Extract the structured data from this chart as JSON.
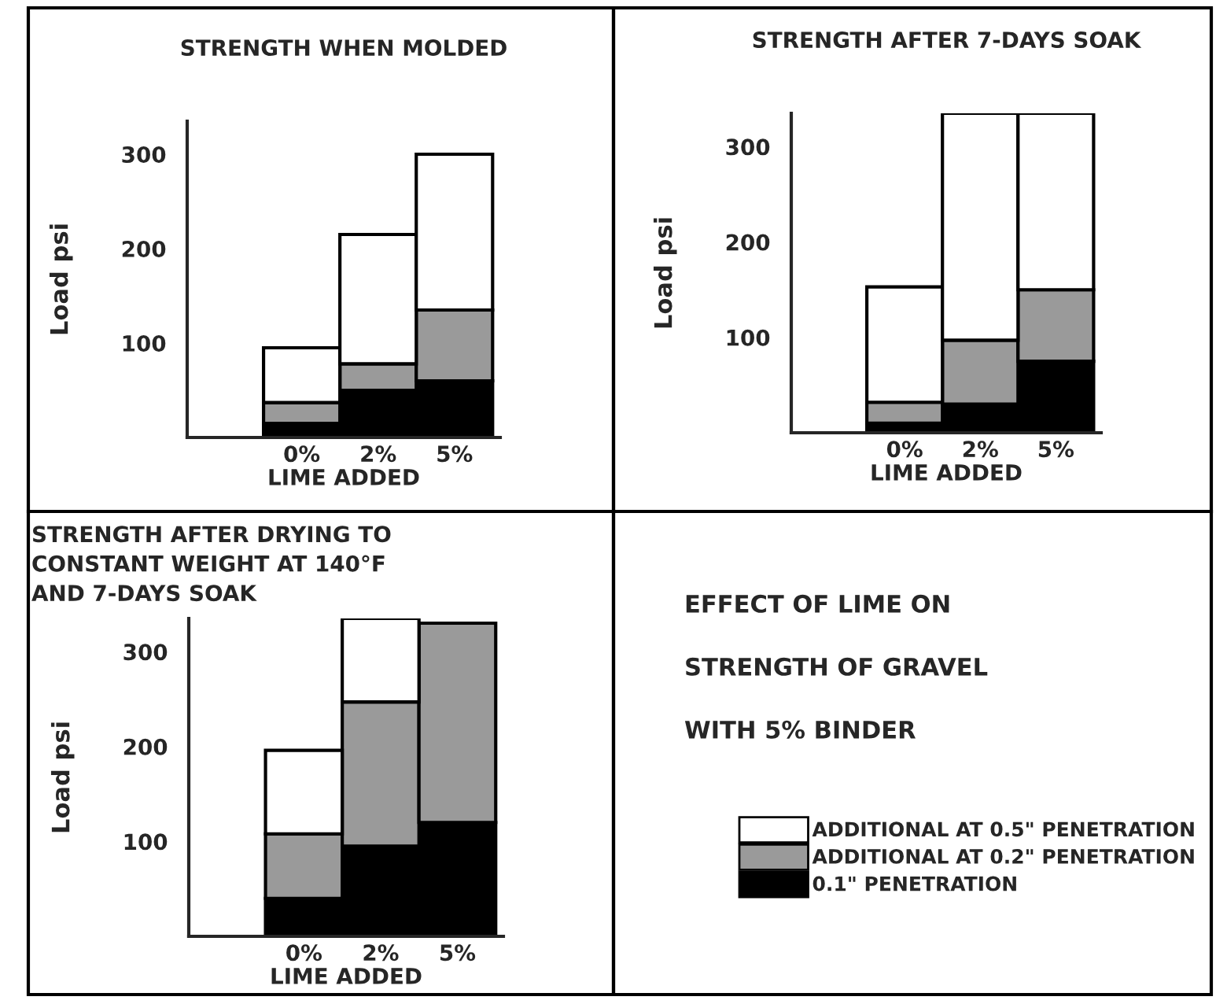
{
  "chart_data": [
    {
      "type": "bar",
      "title": "STRENGTH WHEN MOLDED",
      "xlabel": "LIME ADDED",
      "ylabel": "Load psi",
      "categories": [
        "0%",
        "2%",
        "5%"
      ],
      "stacked": true,
      "ylim": [
        0,
        335
      ],
      "yticks": [
        100,
        200,
        300
      ],
      "legend": "bottom right",
      "series": [
        {
          "name": "0.1\" PENETRATION",
          "color": "#000000",
          "values": [
            15,
            50,
            60
          ]
        },
        {
          "name": "ADDITIONAL AT 0.2\" PENETRATION",
          "color": "#9a9a9a",
          "values": [
            22,
            28,
            75
          ]
        },
        {
          "name": "ADDITIONAL AT 0.5\" PENETRATION",
          "color": "#ffffff",
          "values": [
            58,
            137,
            165
          ]
        }
      ]
    },
    {
      "type": "bar",
      "title": "STRENGTH AFTER 7-DAYS SOAK",
      "xlabel": "LIME ADDED",
      "ylabel": "Load psi",
      "categories": [
        "0%",
        "2%",
        "5%"
      ],
      "stacked": true,
      "ylim": [
        0,
        335
      ],
      "yticks": [
        100,
        200,
        300
      ],
      "series": [
        {
          "color": "#000000",
          "values": [
            10,
            30,
            75
          ]
        },
        {
          "color": "#9a9a9a",
          "values": [
            22,
            67,
            75
          ]
        },
        {
          "color": "#ffffff",
          "values": [
            121,
            238,
            185
          ]
        }
      ]
    },
    {
      "type": "bar",
      "title": "STRENGTH AFTER DRYING TO\nCONSTANT WEIGHT AT 140°F\nAND 7-DAYS SOAK",
      "xlabel": "LIME ADDED",
      "ylabel": "Load psi",
      "categories": [
        "0%",
        "2%",
        "5%"
      ],
      "stacked": true,
      "ylim": [
        0,
        335
      ],
      "yticks": [
        100,
        200,
        300
      ],
      "series": [
        {
          "color": "#000000",
          "values": [
            40,
            95,
            120
          ]
        },
        {
          "color": "#9a9a9a",
          "values": [
            68,
            152,
            210
          ]
        },
        {
          "color": "#ffffff",
          "values": [
            88,
            88,
            null
          ]
        }
      ]
    },
    {
      "type": "other",
      "annotations": [
        "EFFECT OF LIME ON",
        "STRENGTH OF GRAVEL",
        "WITH 5% BINDER"
      ]
    }
  ]
}
